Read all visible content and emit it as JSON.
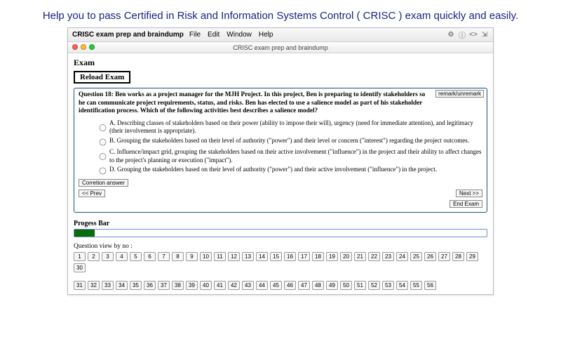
{
  "headline": "Help you to pass Certified in Risk and Information Systems Control ( CRISC ) exam quickly and easily.",
  "menubar": {
    "app": "CRISC exam prep and braindump",
    "items": [
      "File",
      "Edit",
      "Window",
      "Help"
    ],
    "tray_icons": [
      "gear",
      "info",
      "code",
      "expand"
    ]
  },
  "titlebar": {
    "title": "CRISC exam prep and braindump",
    "traffic_colors": [
      "#ff5f57",
      "#febc2e",
      "#28c840"
    ]
  },
  "exam": {
    "heading": "Exam",
    "reload_label": "Reload Exam"
  },
  "question": {
    "remark_label": "remark/unremark",
    "text": "Question 18: Ben works as a project manager for the MJH Project. In this project, Ben is preparing to identify stakeholders so he can communicate project requirements, status, and risks. Ben has elected to use a salience model as part of his stakeholder identification process. Which of the following activities best describes a salience model?",
    "options": [
      "A. Describing classes of stakeholders based on their power (ability to impose their will), urgency (need for immediate attention), and legitimacy (their involvement is appropriate).",
      "B. Grouping the stakeholders based on their level of authority (\"power\") and their level or concern (\"interest\") regarding the project outcomes.",
      "C. Influence/impact grid, grouping the stakeholders based on their active involvement (\"influence\") in the project and their ability to affect changes to the project's planning or execution (\"impact\").",
      "D. Grouping the stakeholders based on their level of authority (\"power\") and their active involvement (\"influence\") in the project."
    ],
    "correction_label": "Corretion answer",
    "prev_label": "<< Prev",
    "next_label": "Next >>",
    "end_label": "End Exam"
  },
  "progress": {
    "label": "Progess Bar",
    "percent": 5,
    "fill_color": "#0a6b0a",
    "border_color": "#6c8cd5"
  },
  "question_view": {
    "label": "Question view by no :",
    "row1": [
      "1",
      "2",
      "3",
      "4",
      "5",
      "6",
      "7",
      "8",
      "9",
      "10",
      "11",
      "12",
      "13",
      "14",
      "15",
      "16",
      "17",
      "18",
      "19",
      "20",
      "21",
      "22",
      "23",
      "24",
      "25",
      "26",
      "27",
      "28",
      "29",
      "30"
    ],
    "row2": [
      "31",
      "32",
      "33",
      "34",
      "35",
      "36",
      "37",
      "38",
      "39",
      "40",
      "41",
      "42",
      "43",
      "44",
      "45",
      "46",
      "47",
      "48",
      "49",
      "50",
      "51",
      "52",
      "53",
      "54",
      "55",
      "56"
    ]
  }
}
